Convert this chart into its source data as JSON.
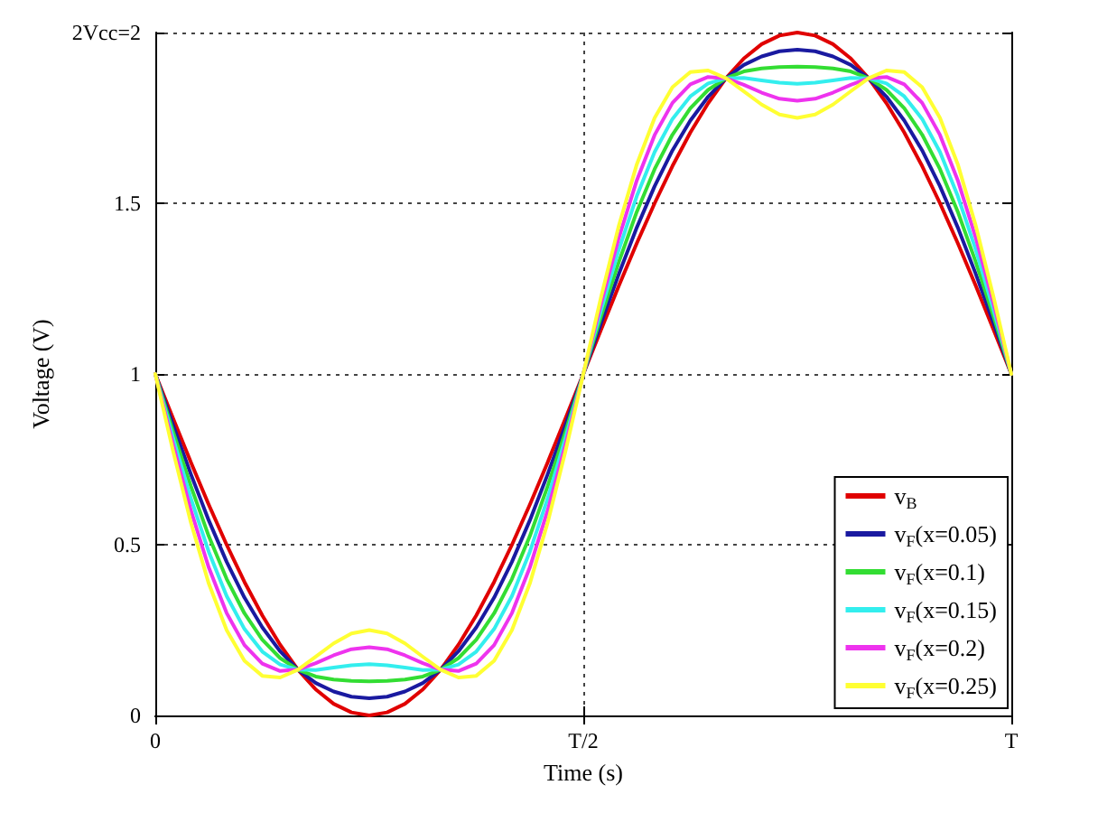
{
  "chart_data": {
    "type": "line",
    "xlabel": "Time (s)",
    "ylabel": "Voltage (V)",
    "categories": [
      "0",
      null,
      null,
      null,
      null,
      null,
      null,
      null,
      null,
      null,
      null,
      null,
      null,
      null,
      null,
      null,
      null,
      null,
      null,
      null,
      null,
      null,
      null,
      null,
      "T/2",
      null,
      null,
      null,
      null,
      null,
      null,
      null,
      null,
      null,
      null,
      null,
      null,
      null,
      null,
      null,
      null,
      null,
      null,
      null,
      null,
      null,
      null,
      null,
      "T"
    ],
    "ylim": [
      0,
      2
    ],
    "yticks": [
      0,
      0.5,
      1,
      1.5,
      {
        "value": 2,
        "label": "2Vcc=2"
      }
    ],
    "grid": true,
    "legend": "bottom right",
    "marker": "none",
    "line_style": "solid",
    "series": [
      {
        "name": "v$_{B}$",
        "color": "#e00000",
        "values": [
          1,
          0.87,
          0.741,
          0.617,
          0.5,
          0.391,
          0.293,
          0.207,
          0.134,
          0.076,
          0.034,
          0.009,
          0,
          0.009,
          0.034,
          0.076,
          0.134,
          0.207,
          0.293,
          0.391,
          0.5,
          0.617,
          0.741,
          0.87,
          1,
          1.13,
          1.259,
          1.383,
          1.5,
          1.609,
          1.707,
          1.793,
          1.866,
          1.924,
          1.966,
          1.991,
          2,
          1.991,
          1.966,
          1.924,
          1.866,
          1.793,
          1.707,
          1.609,
          1.5,
          1.383,
          1.259,
          1.13,
          1
        ]
      },
      {
        "name": "v$_{F}$(x=0.05)",
        "color": "#1a1aa0",
        "values": [
          1,
          0.85,
          0.706,
          0.571,
          0.45,
          0.345,
          0.258,
          0.188,
          0.134,
          0.095,
          0.07,
          0.055,
          0.05,
          0.055,
          0.07,
          0.095,
          0.134,
          0.188,
          0.258,
          0.345,
          0.45,
          0.571,
          0.706,
          0.85,
          1,
          1.15,
          1.294,
          1.429,
          1.55,
          1.655,
          1.742,
          1.812,
          1.866,
          1.905,
          1.93,
          1.945,
          1.95,
          1.945,
          1.93,
          1.905,
          1.866,
          1.812,
          1.742,
          1.655,
          1.55,
          1.429,
          1.294,
          1.15,
          1
        ]
      },
      {
        "name": "v$_{F}$(x=0.1)",
        "color": "#33dd33",
        "values": [
          1,
          0.831,
          0.671,
          0.525,
          0.4,
          0.299,
          0.222,
          0.168,
          0.134,
          0.114,
          0.105,
          0.101,
          0.1,
          0.101,
          0.105,
          0.114,
          0.134,
          0.168,
          0.222,
          0.299,
          0.4,
          0.525,
          0.671,
          0.831,
          1,
          1.169,
          1.329,
          1.475,
          1.6,
          1.701,
          1.778,
          1.832,
          1.866,
          1.886,
          1.895,
          1.899,
          1.9,
          1.899,
          1.895,
          1.886,
          1.866,
          1.832,
          1.778,
          1.701,
          1.6,
          1.475,
          1.329,
          1.169,
          1
        ]
      },
      {
        "name": "v$_{F}$(x=0.15)",
        "color": "#33eeee",
        "values": [
          1,
          0.812,
          0.635,
          0.479,
          0.35,
          0.253,
          0.187,
          0.149,
          0.134,
          0.133,
          0.14,
          0.147,
          0.15,
          0.147,
          0.14,
          0.133,
          0.134,
          0.149,
          0.187,
          0.253,
          0.35,
          0.479,
          0.635,
          0.812,
          1,
          1.188,
          1.365,
          1.521,
          1.65,
          1.747,
          1.813,
          1.851,
          1.866,
          1.867,
          1.86,
          1.853,
          1.85,
          1.853,
          1.86,
          1.867,
          1.866,
          1.851,
          1.813,
          1.747,
          1.65,
          1.521,
          1.365,
          1.188,
          1
        ]
      },
      {
        "name": "v$_{F}$(x=0.2)",
        "color": "#ee33ee",
        "values": [
          1,
          0.793,
          0.6,
          0.433,
          0.3,
          0.206,
          0.152,
          0.13,
          0.134,
          0.153,
          0.176,
          0.194,
          0.2,
          0.194,
          0.176,
          0.153,
          0.134,
          0.13,
          0.152,
          0.206,
          0.3,
          0.433,
          0.6,
          0.793,
          1,
          1.207,
          1.4,
          1.567,
          1.7,
          1.794,
          1.848,
          1.87,
          1.866,
          1.847,
          1.824,
          1.806,
          1.8,
          1.806,
          1.824,
          1.847,
          1.866,
          1.87,
          1.848,
          1.794,
          1.7,
          1.567,
          1.4,
          1.207,
          1
        ]
      },
      {
        "name": "v$_{F}$(x=0.25)",
        "color": "#ffff33",
        "values": [
          1,
          0.774,
          0.564,
          0.386,
          0.25,
          0.16,
          0.116,
          0.111,
          0.134,
          0.172,
          0.211,
          0.24,
          0.25,
          0.24,
          0.211,
          0.172,
          0.134,
          0.111,
          0.116,
          0.16,
          0.25,
          0.386,
          0.564,
          0.774,
          1,
          1.226,
          1.436,
          1.614,
          1.75,
          1.84,
          1.884,
          1.889,
          1.866,
          1.828,
          1.789,
          1.76,
          1.75,
          1.76,
          1.789,
          1.828,
          1.866,
          1.889,
          1.884,
          1.84,
          1.75,
          1.614,
          1.436,
          1.226,
          1
        ]
      }
    ]
  }
}
